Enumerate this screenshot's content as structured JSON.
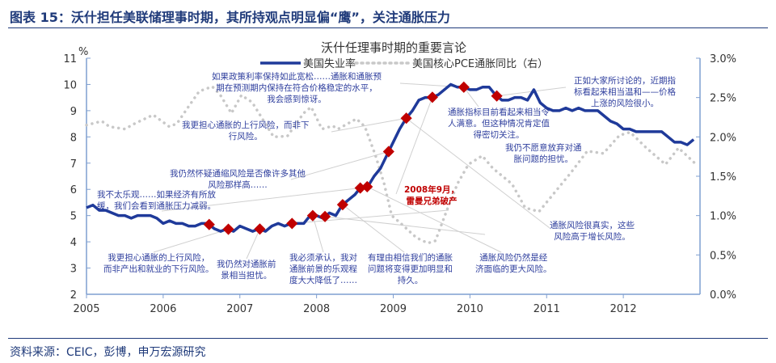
{
  "header": {
    "title": "图表 15：沃什担任美联储理事时期，其所持观点明显偏“鹰”，关注通胀压力"
  },
  "footer": {
    "source": "资料来源：CEIC，彭博，申万宏源研究"
  },
  "chart_data": {
    "type": "line",
    "title": "沃什任理事时期的重要言论",
    "ylabel_left": "%",
    "x_ticks": [
      "2005",
      "2006",
      "2007",
      "2008",
      "2009",
      "2010",
      "2011",
      "2012"
    ],
    "xlim": [
      2005,
      2013
    ],
    "y_left": {
      "lim": [
        2,
        11
      ],
      "ticks": [
        "2",
        "3",
        "4",
        "5",
        "6",
        "7",
        "8",
        "9",
        "10",
        "11"
      ]
    },
    "y_right": {
      "lim": [
        0,
        3
      ],
      "ticks": [
        "0.0%",
        "0.5%",
        "1.0%",
        "1.5%",
        "2.0%",
        "2.5%",
        "3.0%"
      ]
    },
    "legend_position": "top-center",
    "colors": {
      "unemployment": "#1f3a9a",
      "core_pce": "#c8c8c8",
      "marker": "#c00000"
    },
    "series": [
      {
        "name": "美国失业率",
        "axis": "left",
        "style": "solid",
        "start": "2005-01",
        "frequency": "monthly",
        "values": [
          5.3,
          5.4,
          5.2,
          5.2,
          5.1,
          5.0,
          5.0,
          4.9,
          5.0,
          5.0,
          5.0,
          4.9,
          4.7,
          4.8,
          4.7,
          4.7,
          4.6,
          4.6,
          4.7,
          4.7,
          4.5,
          4.4,
          4.5,
          4.4,
          4.6,
          4.5,
          4.4,
          4.5,
          4.4,
          4.6,
          4.7,
          4.6,
          4.7,
          4.7,
          4.7,
          5.0,
          5.0,
          4.9,
          5.1,
          5.0,
          5.4,
          5.6,
          5.8,
          6.1,
          6.1,
          6.5,
          6.8,
          7.3,
          7.8,
          8.3,
          8.7,
          9.0,
          9.4,
          9.5,
          9.5,
          9.6,
          9.8,
          10.0,
          9.9,
          9.9,
          9.8,
          9.8,
          9.9,
          9.9,
          9.6,
          9.4,
          9.4,
          9.5,
          9.5,
          9.4,
          9.8,
          9.3,
          9.1,
          9.0,
          9.0,
          9.1,
          9.0,
          9.1,
          9.0,
          9.0,
          9.0,
          8.8,
          8.6,
          8.5,
          8.3,
          8.3,
          8.2,
          8.2,
          8.2,
          8.2,
          8.2,
          8.0,
          7.8,
          7.8,
          7.7,
          7.9
        ]
      },
      {
        "name": "美国核心PCE通胀同比（右）",
        "axis": "right",
        "style": "dotted",
        "points": [
          [
            2005.0,
            2.15
          ],
          [
            2005.2,
            2.2
          ],
          [
            2005.3,
            2.13
          ],
          [
            2005.5,
            2.1
          ],
          [
            2005.63,
            2.17
          ],
          [
            2005.87,
            2.28
          ],
          [
            2006.08,
            2.13
          ],
          [
            2006.18,
            2.17
          ],
          [
            2006.32,
            2.37
          ],
          [
            2006.47,
            2.58
          ],
          [
            2006.64,
            2.64
          ],
          [
            2006.74,
            2.54
          ],
          [
            2006.89,
            2.3
          ],
          [
            2007.02,
            2.53
          ],
          [
            2007.16,
            2.44
          ],
          [
            2007.44,
            2.0
          ],
          [
            2007.62,
            2.01
          ],
          [
            2007.83,
            2.3
          ],
          [
            2007.93,
            2.38
          ],
          [
            2008.07,
            2.1
          ],
          [
            2008.21,
            2.14
          ],
          [
            2008.28,
            2.1
          ],
          [
            2008.52,
            2.23
          ],
          [
            2008.63,
            2.13
          ],
          [
            2008.77,
            1.76
          ],
          [
            2008.88,
            1.41
          ],
          [
            2008.98,
            1.0
          ],
          [
            2009.1,
            0.9
          ],
          [
            2009.3,
            0.72
          ],
          [
            2009.45,
            0.65
          ],
          [
            2009.55,
            0.68
          ],
          [
            2009.7,
            1.07
          ],
          [
            2009.84,
            1.41
          ],
          [
            2009.98,
            1.65
          ],
          [
            2010.16,
            1.76
          ],
          [
            2010.3,
            1.6
          ],
          [
            2010.55,
            1.4
          ],
          [
            2010.72,
            1.1
          ],
          [
            2010.9,
            1.05
          ],
          [
            2011.11,
            1.3
          ],
          [
            2011.32,
            1.55
          ],
          [
            2011.53,
            1.82
          ],
          [
            2011.74,
            1.79
          ],
          [
            2011.95,
            2.02
          ],
          [
            2012.09,
            2.06
          ],
          [
            2012.3,
            1.86
          ],
          [
            2012.55,
            1.65
          ],
          [
            2012.72,
            1.86
          ],
          [
            2012.95,
            1.65
          ]
        ]
      }
    ],
    "markers": [
      2006.6,
      2006.85,
      2007.26,
      2007.68,
      2007.95,
      2008.11,
      2008.34,
      2008.57,
      2008.66,
      2008.94,
      2009.17,
      2009.51,
      2009.92,
      2010.35
    ],
    "annotations": [
      {
        "lines": [
          "如果政策利率保持如此宽松……通胀和通胀预",
          "期在预测期内保持在符合价格稳定的水平，",
          "我会感到惊讶。"
        ]
      },
      {
        "lines": [
          "我更担心通胀的上行风险，而非下",
          "行风险。"
        ]
      },
      {
        "lines": [
          "我仍然怀疑通缩风险是否像许多其他",
          "风险那样高……"
        ]
      },
      {
        "lines": [
          "我不太乐观……如果经济有所放",
          "缓，我们会看到通胀压力减弱。"
        ]
      },
      {
        "lines": [
          "我更担心通胀的上行风险，",
          "而非产出和就业的下行风险。"
        ]
      },
      {
        "lines": [
          "我仍然对通胀前",
          "景相当担忧。"
        ]
      },
      {
        "lines": [
          "我必须承认，我对",
          "通胀前景的乐观程",
          "度大大降低了……"
        ]
      },
      {
        "lines": [
          "有理由相信我们的通胀",
          "问题将变得更加明显和",
          "持久。"
        ]
      },
      {
        "lines": [
          "通胀风险仍然是经",
          "济面临的更大风险。"
        ]
      },
      {
        "lines": [
          "通胀风险很真实，这些",
          "风险高于增长风险。"
        ]
      },
      {
        "lines": [
          "我仍不愿意放弃对通",
          "胀问题的担忧。"
        ]
      },
      {
        "lines": [
          "通胀指标目前看起来相当令",
          "人满意。但这种情况肯定值",
          "得密切关注。"
        ]
      },
      {
        "lines": [
          "正如大家所讨论的，近期指",
          "标看起来相当温和——价格",
          "上涨的风险很小。"
        ]
      },
      {
        "lines": [
          "2008年9月，",
          "雷曼兄弟破产"
        ],
        "highlight": true
      }
    ]
  }
}
